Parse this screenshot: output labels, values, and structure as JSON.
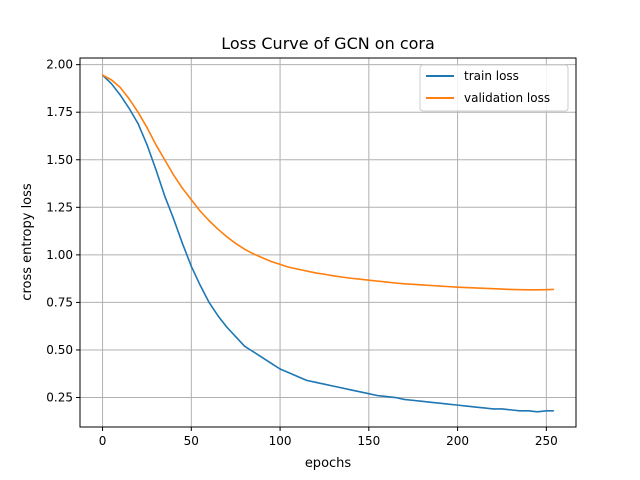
{
  "chart_data": {
    "type": "line",
    "title": "Loss Curve of GCN on cora",
    "xlabel": "epochs",
    "ylabel": "cross entropy loss",
    "xlim": [
      -12.7,
      266.7
    ],
    "ylim": [
      0.095,
      2.035
    ],
    "xticks": [
      0,
      50,
      100,
      150,
      200,
      250
    ],
    "yticks": [
      0.25,
      0.5,
      0.75,
      1.0,
      1.25,
      1.5,
      1.75,
      2.0
    ],
    "ytick_labels": [
      "0.25",
      "0.50",
      "0.75",
      "1.00",
      "1.25",
      "1.50",
      "1.75",
      "2.00"
    ],
    "grid": true,
    "legend_position": "top-right",
    "series": [
      {
        "name": "train loss",
        "color": "#1f77b4",
        "points": [
          [
            0,
            1.945
          ],
          [
            5,
            1.9
          ],
          [
            10,
            1.84
          ],
          [
            15,
            1.77
          ],
          [
            20,
            1.69
          ],
          [
            25,
            1.58
          ],
          [
            30,
            1.45
          ],
          [
            35,
            1.31
          ],
          [
            40,
            1.19
          ],
          [
            45,
            1.06
          ],
          [
            50,
            0.94
          ],
          [
            55,
            0.84
          ],
          [
            60,
            0.75
          ],
          [
            65,
            0.68
          ],
          [
            70,
            0.62
          ],
          [
            75,
            0.57
          ],
          [
            80,
            0.52
          ],
          [
            85,
            0.49
          ],
          [
            90,
            0.46
          ],
          [
            95,
            0.43
          ],
          [
            100,
            0.4
          ],
          [
            105,
            0.38
          ],
          [
            110,
            0.36
          ],
          [
            115,
            0.34
          ],
          [
            120,
            0.33
          ],
          [
            125,
            0.32
          ],
          [
            130,
            0.31
          ],
          [
            135,
            0.3
          ],
          [
            140,
            0.29
          ],
          [
            145,
            0.28
          ],
          [
            150,
            0.27
          ],
          [
            155,
            0.26
          ],
          [
            160,
            0.255
          ],
          [
            165,
            0.25
          ],
          [
            170,
            0.24
          ],
          [
            175,
            0.235
          ],
          [
            180,
            0.23
          ],
          [
            185,
            0.225
          ],
          [
            190,
            0.22
          ],
          [
            195,
            0.215
          ],
          [
            200,
            0.21
          ],
          [
            205,
            0.205
          ],
          [
            210,
            0.2
          ],
          [
            215,
            0.195
          ],
          [
            220,
            0.19
          ],
          [
            225,
            0.19
          ],
          [
            230,
            0.185
          ],
          [
            235,
            0.18
          ],
          [
            240,
            0.18
          ],
          [
            245,
            0.175
          ],
          [
            250,
            0.18
          ],
          [
            254,
            0.18
          ]
        ]
      },
      {
        "name": "validation loss",
        "color": "#ff7f0e",
        "points": [
          [
            0,
            1.945
          ],
          [
            5,
            1.92
          ],
          [
            10,
            1.88
          ],
          [
            15,
            1.82
          ],
          [
            20,
            1.75
          ],
          [
            25,
            1.67
          ],
          [
            30,
            1.58
          ],
          [
            35,
            1.5
          ],
          [
            40,
            1.42
          ],
          [
            45,
            1.35
          ],
          [
            50,
            1.29
          ],
          [
            55,
            1.23
          ],
          [
            60,
            1.18
          ],
          [
            65,
            1.135
          ],
          [
            70,
            1.095
          ],
          [
            75,
            1.06
          ],
          [
            80,
            1.03
          ],
          [
            85,
            1.005
          ],
          [
            90,
            0.985
          ],
          [
            95,
            0.965
          ],
          [
            100,
            0.95
          ],
          [
            105,
            0.935
          ],
          [
            110,
            0.925
          ],
          [
            115,
            0.915
          ],
          [
            120,
            0.905
          ],
          [
            125,
            0.898
          ],
          [
            130,
            0.89
          ],
          [
            135,
            0.883
          ],
          [
            140,
            0.877
          ],
          [
            145,
            0.872
          ],
          [
            150,
            0.867
          ],
          [
            155,
            0.862
          ],
          [
            160,
            0.857
          ],
          [
            165,
            0.852
          ],
          [
            170,
            0.848
          ],
          [
            175,
            0.845
          ],
          [
            180,
            0.842
          ],
          [
            185,
            0.839
          ],
          [
            190,
            0.836
          ],
          [
            195,
            0.833
          ],
          [
            200,
            0.83
          ],
          [
            205,
            0.828
          ],
          [
            210,
            0.826
          ],
          [
            215,
            0.824
          ],
          [
            220,
            0.822
          ],
          [
            225,
            0.82
          ],
          [
            230,
            0.818
          ],
          [
            235,
            0.817
          ],
          [
            240,
            0.816
          ],
          [
            245,
            0.816
          ],
          [
            250,
            0.817
          ],
          [
            254,
            0.818
          ]
        ]
      }
    ]
  }
}
